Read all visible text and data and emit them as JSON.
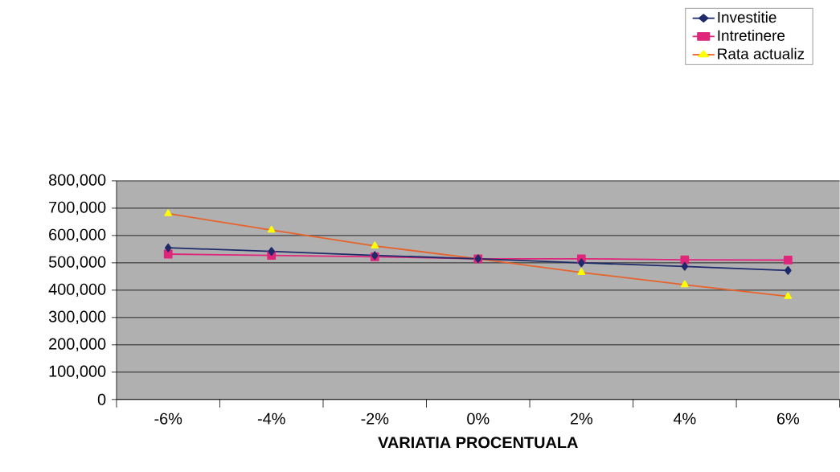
{
  "chart_data": {
    "type": "line",
    "xlabel": "VARIATIA PROCENTUALA",
    "categories": [
      "-6%",
      "-4%",
      "-2%",
      "0%",
      "2%",
      "4%",
      "6%"
    ],
    "series": [
      {
        "name": "Investitie",
        "color": "#1f2a6b",
        "marker": "diamond",
        "values": [
          555000,
          542000,
          527000,
          515000,
          500000,
          487000,
          472000
        ]
      },
      {
        "name": "Intretinere",
        "color": "#e0267a",
        "marker": "square",
        "values": [
          532000,
          527000,
          522000,
          515000,
          515000,
          511000,
          510000
        ]
      },
      {
        "name": "Rata actualiz",
        "color": "#e8622c",
        "marker": "triangle",
        "values": [
          680000,
          620000,
          562000,
          515000,
          465000,
          420000,
          377000
        ]
      }
    ],
    "ylim": [
      0,
      800000
    ],
    "yticks": [
      0,
      {
        "value": 100000,
        "label": "100,000"
      },
      {
        "value": 200000,
        "label": "200,000"
      },
      {
        "value": 300000,
        "label": "300,000"
      },
      {
        "value": 400000,
        "label": "400,000"
      },
      {
        "value": 500000,
        "label": "500,000"
      },
      {
        "value": 600000,
        "label": "600,000"
      },
      {
        "value": 700000,
        "label": "700,000"
      },
      {
        "value": 800000,
        "label": "800,000"
      }
    ],
    "grid": "y",
    "legend": "top right"
  }
}
